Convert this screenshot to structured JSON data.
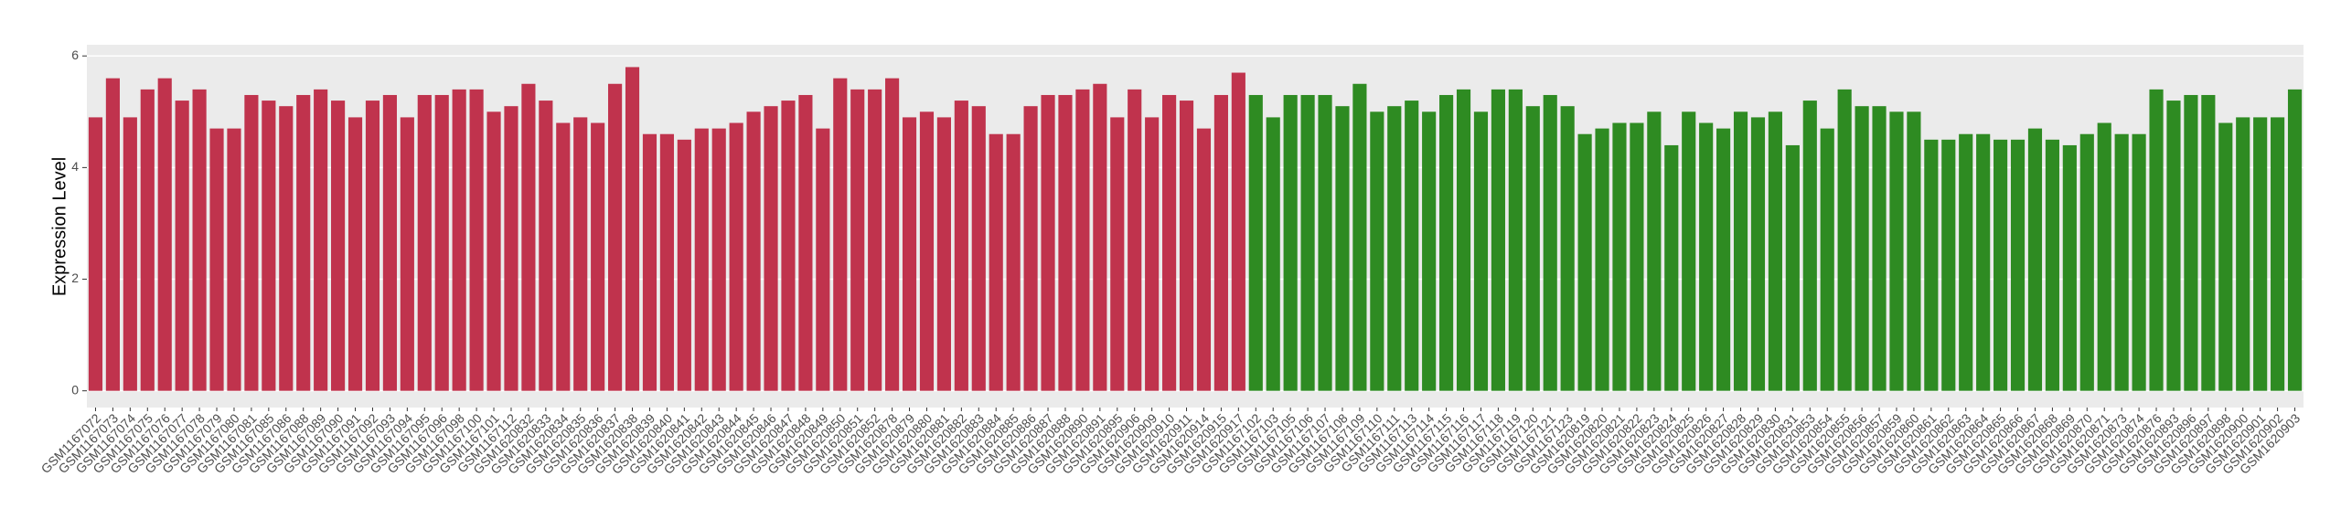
{
  "chart_data": {
    "type": "bar",
    "y_label": "Expression Level",
    "categories": [
      "GSM1167072",
      "GSM1167073",
      "GSM1167074",
      "GSM1167075",
      "GSM1167076",
      "GSM1167077",
      "GSM1167078",
      "GSM1167079",
      "GSM1167080",
      "GSM1167081",
      "GSM1167085",
      "GSM1167086",
      "GSM1167088",
      "GSM1167089",
      "GSM1167090",
      "GSM1167091",
      "GSM1167092",
      "GSM1167093",
      "GSM1167094",
      "GSM1167095",
      "GSM1167096",
      "GSM1167098",
      "GSM1167100",
      "GSM1167101",
      "GSM1167112",
      "GSM1620832",
      "GSM1620833",
      "GSM1620834",
      "GSM1620835",
      "GSM1620836",
      "GSM1620837",
      "GSM1620838",
      "GSM1620839",
      "GSM1620840",
      "GSM1620841",
      "GSM1620842",
      "GSM1620843",
      "GSM1620844",
      "GSM1620845",
      "GSM1620846",
      "GSM1620847",
      "GSM1620848",
      "GSM1620849",
      "GSM1620850",
      "GSM1620851",
      "GSM1620852",
      "GSM1620878",
      "GSM1620879",
      "GSM1620880",
      "GSM1620881",
      "GSM1620882",
      "GSM1620883",
      "GSM1620884",
      "GSM1620885",
      "GSM1620886",
      "GSM1620887",
      "GSM1620888",
      "GSM1620890",
      "GSM1620891",
      "GSM1620895",
      "GSM1620906",
      "GSM1620909",
      "GSM1620910",
      "GSM1620911",
      "GSM1620914",
      "GSM1620915",
      "GSM1620917",
      "GSM1167102",
      "GSM1167103",
      "GSM1167105",
      "GSM1167106",
      "GSM1167107",
      "GSM1167108",
      "GSM1167109",
      "GSM1167110",
      "GSM1167111",
      "GSM1167113",
      "GSM1167114",
      "GSM1167115",
      "GSM1167116",
      "GSM1167117",
      "GSM1167118",
      "GSM1167119",
      "GSM1167120",
      "GSM1167121",
      "GSM1167123",
      "GSM1620819",
      "GSM1620820",
      "GSM1620821",
      "GSM1620822",
      "GSM1620823",
      "GSM1620824",
      "GSM1620825",
      "GSM1620826",
      "GSM1620827",
      "GSM1620828",
      "GSM1620829",
      "GSM1620830",
      "GSM1620831",
      "GSM1620853",
      "GSM1620854",
      "GSM1620855",
      "GSM1620856",
      "GSM1620857",
      "GSM1620859",
      "GSM1620860",
      "GSM1620861",
      "GSM1620862",
      "GSM1620863",
      "GSM1620864",
      "GSM1620865",
      "GSM1620866",
      "GSM1620867",
      "GSM1620868",
      "GSM1620869",
      "GSM1620870",
      "GSM1620871",
      "GSM1620873",
      "GSM1620874",
      "GSM1620876",
      "GSM1620893",
      "GSM1620896",
      "GSM1620897",
      "GSM1620898",
      "GSM1620900",
      "GSM1620901",
      "GSM1620902",
      "GSM1620903"
    ],
    "series": [
      {
        "color": "#c0334d",
        "values": [
          4.9,
          5.6,
          4.9,
          5.4,
          5.6,
          5.2,
          5.4,
          4.7,
          4.7,
          5.3,
          5.2,
          5.1,
          5.3,
          5.4,
          5.2,
          4.9,
          5.2,
          5.3,
          4.9,
          5.3,
          5.3,
          5.4,
          5.4,
          5.0,
          5.1,
          5.5,
          5.2,
          4.8,
          4.9,
          4.8,
          5.5,
          5.8,
          4.6,
          4.6,
          4.5,
          4.7,
          4.7,
          4.8,
          5.0,
          5.1,
          5.2,
          5.3,
          4.7,
          5.6,
          5.4,
          5.4,
          5.6,
          4.9,
          5.0,
          4.9,
          5.2,
          5.1,
          4.6,
          4.6,
          5.1,
          5.3,
          5.3,
          5.4,
          5.5,
          4.9,
          5.4,
          4.9,
          5.3,
          5.2,
          4.7,
          5.3,
          5.7,
          null,
          null,
          null,
          null,
          null,
          null,
          null,
          null,
          null,
          null,
          null,
          null,
          null,
          null,
          null,
          null,
          null,
          null,
          null,
          null,
          null,
          null,
          null,
          null,
          null,
          null,
          null,
          null,
          null,
          null,
          null,
          null,
          null,
          null,
          null,
          null,
          null,
          null,
          null,
          null,
          null,
          null,
          null,
          null,
          null,
          null,
          null,
          null,
          null,
          null,
          null,
          null,
          null,
          null,
          null,
          null,
          null,
          null,
          null,
          null,
          null
        ]
      },
      {
        "color": "#2e8b22",
        "values": [
          null,
          null,
          null,
          null,
          null,
          null,
          null,
          null,
          null,
          null,
          null,
          null,
          null,
          null,
          null,
          null,
          null,
          null,
          null,
          null,
          null,
          null,
          null,
          null,
          null,
          null,
          null,
          null,
          null,
          null,
          null,
          null,
          null,
          null,
          null,
          null,
          null,
          null,
          null,
          null,
          null,
          null,
          null,
          null,
          null,
          null,
          null,
          null,
          null,
          null,
          null,
          null,
          null,
          null,
          null,
          null,
          null,
          null,
          null,
          null,
          null,
          null,
          null,
          null,
          null,
          null,
          null,
          5.3,
          4.9,
          5.3,
          5.3,
          5.3,
          5.1,
          5.5,
          5.0,
          5.1,
          5.2,
          5.0,
          5.3,
          5.4,
          5.0,
          5.4,
          5.4,
          5.1,
          5.3,
          5.1,
          4.6,
          4.7,
          4.8,
          4.8,
          5.0,
          4.4,
          5.0,
          4.8,
          4.7,
          5.0,
          4.9,
          5.0,
          4.4,
          5.2,
          4.7,
          5.4,
          5.1,
          5.1,
          5.0,
          5.0,
          4.5,
          4.5,
          4.6,
          4.6,
          4.5,
          4.5,
          4.7,
          4.5,
          4.4,
          4.6,
          4.8,
          4.6,
          4.6,
          5.4,
          5.2,
          5.3,
          5.3,
          4.8,
          4.9,
          4.9,
          4.9,
          5.4
        ]
      }
    ],
    "ylim": [
      -0.3,
      6.2
    ],
    "yticks": [
      0,
      2,
      4,
      6
    ],
    "grid": true
  }
}
